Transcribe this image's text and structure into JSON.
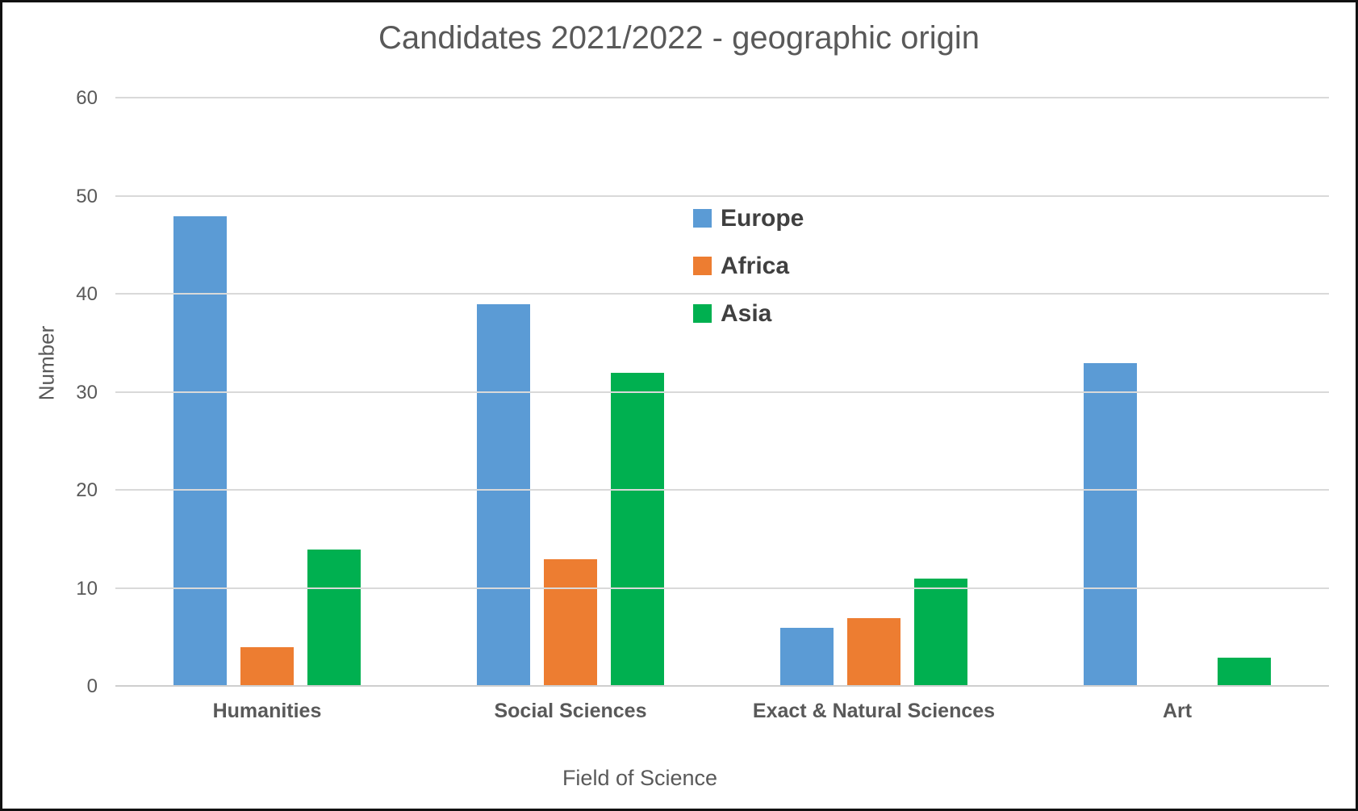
{
  "chart": {
    "title": "Candidates 2021/2022 - geographic origin",
    "x_axis_title": "Field of Science",
    "y_axis_title": "Number"
  },
  "chart_data": {
    "type": "bar",
    "title": "Candidates 2021/2022 - geographic origin",
    "xlabel": "Field of Science",
    "ylabel": "Number",
    "categories": [
      "Humanities",
      "Social Sciences",
      "Exact & Natural Sciences",
      "Art"
    ],
    "series": [
      {
        "name": "Europe",
        "color": "#5B9BD5",
        "values": [
          48,
          39,
          6,
          33
        ]
      },
      {
        "name": "Africa",
        "color": "#ED7D31",
        "values": [
          4,
          13,
          7,
          0
        ]
      },
      {
        "name": "Asia",
        "color": "#00B050",
        "values": [
          14,
          32,
          11,
          3
        ]
      }
    ],
    "ylim": [
      0,
      60
    ],
    "y_ticks": [
      0,
      10,
      20,
      30,
      40,
      50,
      60
    ],
    "grid": "horizontal",
    "legend_position": "inside-upper-middle",
    "colors": {
      "grid_color": "#D9D9D9",
      "axis_color": "#CFCFCF",
      "text_color": "#595959",
      "legend_text_color": "#404040",
      "background": "#FFFFFF",
      "border": "#111111"
    }
  }
}
